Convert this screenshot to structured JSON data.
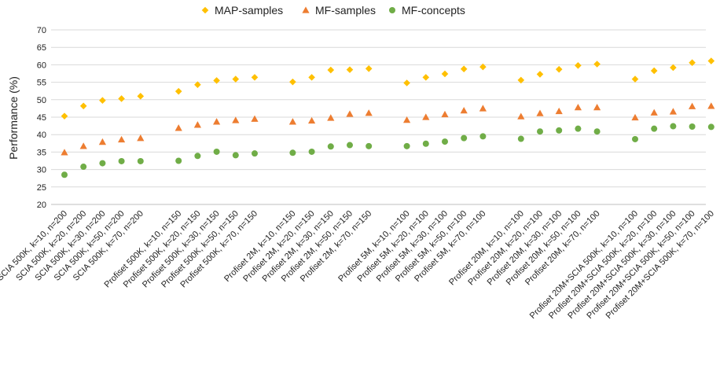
{
  "chart_data": {
    "type": "scatter",
    "title": "",
    "xlabel": "",
    "ylabel": "Performance (%)",
    "ylim": [
      20,
      70
    ],
    "ytick_step": 5,
    "grid": "horizontal",
    "legend_position": "top-center",
    "groups": [
      [
        "SCIA 500K, k=10, n=200",
        "SCIA 500K, k=20, n=200",
        "SCIA 500K, k=30, n=200",
        "SCIA 500K, k=50, n=200",
        "SCIA 500K, k=70, n=200"
      ],
      [
        "Profiset 500K, k=10, n=150",
        "Profiset 500K, k=20, n=150",
        "Profiset 500K, k=30, n=150",
        "Profiset 500K, k=50, n=150",
        "Profiset 500K, k=70, n=150"
      ],
      [
        "Profiset 2M, k=10, n=150",
        "Profiset 2M, k=20, n=150",
        "Profiset 2M, k=30, n=150",
        "Profiset 2M, k=50, n=150",
        "Profiset 2M, k=70, n=150"
      ],
      [
        "Profiset 5M, k=10, n=100",
        "Profiset 5M, k=20, n=100",
        "Profiset 5M, k=30, n=100",
        "Profiset 5M, k=50, n=100",
        "Profiset 5M, k=70, n=100"
      ],
      [
        "Profiset 20M, k=10, n=100",
        "Profiset 20M, k=20, n=100",
        "Profiset 20M, k=30, n=100",
        "Profiset 20M, k=50, n=100",
        "Profiset 20M, k=70, n=100"
      ],
      [
        "Profiset 20M+SCIA 500K, k=10, n=100",
        "Profiset 20M+SCIA 500K, k=20, n=100",
        "Profiset 20M+SCIA 500K, k=30, n=100",
        "Profiset 20M+SCIA 500K, k=50, n=100",
        "Profiset 20M+SCIA 500K, k=70, n=100"
      ]
    ],
    "series": [
      {
        "name": "MAP-samples",
        "color": "#FFC000",
        "marker": "diamond",
        "values": [
          45.3,
          48.2,
          49.8,
          50.3,
          51.0,
          52.4,
          54.3,
          55.5,
          55.9,
          56.4,
          55.1,
          56.4,
          58.5,
          58.6,
          58.9,
          54.8,
          56.4,
          57.4,
          58.8,
          59.4,
          55.6,
          57.3,
          58.7,
          59.8,
          60.2,
          55.9,
          58.3,
          59.2,
          60.6,
          61.1
        ]
      },
      {
        "name": "MF-samples",
        "color": "#ED7D31",
        "marker": "triangle",
        "values": [
          34.9,
          36.7,
          37.9,
          38.6,
          39.0,
          41.9,
          42.8,
          43.7,
          44.1,
          44.5,
          43.7,
          44.0,
          44.8,
          45.9,
          46.2,
          44.2,
          45.0,
          45.8,
          46.9,
          47.5,
          45.2,
          46.1,
          46.7,
          47.8,
          47.8,
          44.9,
          46.3,
          46.6,
          48.1,
          48.2
        ]
      },
      {
        "name": "MF-concepts",
        "color": "#70AD47",
        "marker": "circle",
        "values": [
          28.5,
          30.8,
          31.8,
          32.4,
          32.4,
          32.5,
          33.9,
          35.1,
          34.1,
          34.6,
          34.8,
          35.1,
          36.6,
          37.0,
          36.7,
          36.7,
          37.4,
          38.0,
          39.0,
          39.5,
          38.8,
          40.9,
          41.2,
          41.7,
          40.9,
          38.7,
          41.7,
          42.4,
          42.3,
          42.2
        ]
      }
    ]
  }
}
